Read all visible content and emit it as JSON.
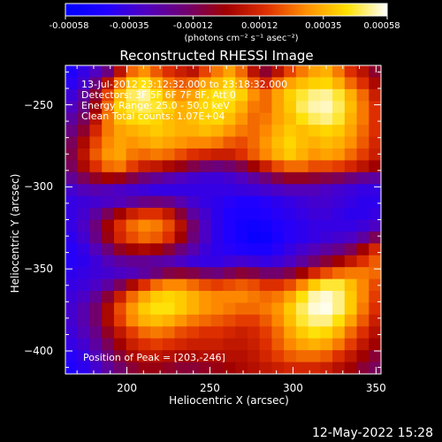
{
  "chart_data": {
    "type": "heatmap",
    "title": "Reconstructed RHESSI Image",
    "xlabel": "Heliocentric X (arcsec)",
    "ylabel": "Heliocentric Y (arcsec)",
    "xlim": [
      163,
      353
    ],
    "ylim": [
      -414,
      -226
    ],
    "x_ticks": [
      200,
      250,
      300,
      350
    ],
    "y_ticks": [
      -250,
      -300,
      -350,
      -400
    ],
    "colorbar": {
      "min": -0.00058,
      "max": 0.00058,
      "tick_values": [
        -0.00058,
        -0.00035,
        -0.00012,
        0.00012,
        0.00035,
        0.00058
      ],
      "tick_labels": [
        "-0.00058",
        "-0.00035",
        "-0.00012",
        "0.00012",
        "0.00035",
        "0.00058"
      ],
      "unit_label": "(photons cm⁻² s⁻¹ asec⁻²)",
      "colors": [
        "#0000ff",
        "#2000ff",
        "#5000c0",
        "#700070",
        "#a00000",
        "#e03000",
        "#ff9000",
        "#ffe000",
        "#ffffff"
      ]
    },
    "grid": false,
    "legend": "none",
    "annotations": {
      "time_range": "13-Jul-2012 23:12:32.000 to 23:18:32.000",
      "detectors": "Detectors: 3F 5F 6F 7F 8F, Att 0",
      "energy_range": "Energy Range: 25.0 - 50.0 keV",
      "algorithm": "Clean   Total counts: 1.07E+04",
      "peak": "Position of Peak = [203,-246]"
    },
    "peak_position": [
      203,
      -246
    ],
    "image_grid": {
      "cols": 26,
      "rows": 26,
      "values": [
        [
          0.12,
          0.18,
          0.25,
          0.35,
          0.55,
          0.7,
          0.75,
          0.68,
          0.62,
          0.58,
          0.55,
          0.65,
          0.72,
          0.78,
          0.7,
          0.55,
          0.45,
          0.55,
          0.65,
          0.72,
          0.78,
          0.8,
          0.72,
          0.62,
          0.55,
          0.45
        ],
        [
          0.15,
          0.22,
          0.35,
          0.55,
          0.72,
          0.85,
          0.88,
          0.8,
          0.72,
          0.68,
          0.7,
          0.78,
          0.82,
          0.86,
          0.78,
          0.68,
          0.6,
          0.7,
          0.78,
          0.82,
          0.85,
          0.86,
          0.8,
          0.7,
          0.62,
          0.52
        ],
        [
          0.2,
          0.3,
          0.45,
          0.65,
          0.82,
          0.92,
          0.95,
          0.88,
          0.8,
          0.75,
          0.78,
          0.85,
          0.88,
          0.9,
          0.85,
          0.75,
          0.7,
          0.78,
          0.85,
          0.9,
          0.94,
          0.95,
          0.9,
          0.8,
          0.7,
          0.58
        ],
        [
          0.25,
          0.35,
          0.5,
          0.7,
          0.85,
          0.9,
          0.92,
          0.9,
          0.85,
          0.8,
          0.82,
          0.86,
          0.88,
          0.86,
          0.8,
          0.72,
          0.7,
          0.78,
          0.84,
          0.92,
          0.96,
          0.97,
          0.92,
          0.82,
          0.72,
          0.62
        ],
        [
          0.3,
          0.4,
          0.55,
          0.72,
          0.82,
          0.86,
          0.88,
          0.86,
          0.82,
          0.8,
          0.82,
          0.85,
          0.86,
          0.82,
          0.76,
          0.7,
          0.72,
          0.78,
          0.82,
          0.88,
          0.92,
          0.94,
          0.9,
          0.8,
          0.72,
          0.62
        ],
        [
          0.35,
          0.45,
          0.6,
          0.72,
          0.78,
          0.8,
          0.82,
          0.84,
          0.82,
          0.8,
          0.8,
          0.82,
          0.8,
          0.76,
          0.72,
          0.7,
          0.74,
          0.8,
          0.84,
          0.82,
          0.84,
          0.86,
          0.84,
          0.78,
          0.7,
          0.62
        ],
        [
          0.4,
          0.52,
          0.65,
          0.74,
          0.78,
          0.76,
          0.78,
          0.8,
          0.78,
          0.76,
          0.74,
          0.74,
          0.72,
          0.68,
          0.66,
          0.7,
          0.76,
          0.82,
          0.86,
          0.82,
          0.8,
          0.82,
          0.8,
          0.75,
          0.68,
          0.6
        ],
        [
          0.42,
          0.55,
          0.68,
          0.76,
          0.78,
          0.72,
          0.7,
          0.72,
          0.7,
          0.66,
          0.62,
          0.6,
          0.58,
          0.58,
          0.62,
          0.68,
          0.74,
          0.8,
          0.84,
          0.8,
          0.76,
          0.78,
          0.76,
          0.7,
          0.64,
          0.58
        ],
        [
          0.4,
          0.52,
          0.62,
          0.7,
          0.72,
          0.64,
          0.58,
          0.56,
          0.52,
          0.48,
          0.42,
          0.38,
          0.36,
          0.38,
          0.42,
          0.5,
          0.58,
          0.66,
          0.7,
          0.7,
          0.66,
          0.66,
          0.64,
          0.6,
          0.55,
          0.5
        ],
        [
          0.32,
          0.4,
          0.46,
          0.5,
          0.48,
          0.42,
          0.36,
          0.32,
          0.28,
          0.25,
          0.22,
          0.2,
          0.2,
          0.22,
          0.25,
          0.3,
          0.36,
          0.42,
          0.46,
          0.46,
          0.44,
          0.42,
          0.4,
          0.36,
          0.32,
          0.3
        ],
        [
          0.22,
          0.26,
          0.28,
          0.26,
          0.24,
          0.22,
          0.2,
          0.18,
          0.18,
          0.18,
          0.18,
          0.18,
          0.18,
          0.18,
          0.19,
          0.2,
          0.22,
          0.24,
          0.26,
          0.26,
          0.26,
          0.24,
          0.22,
          0.2,
          0.18,
          0.18
        ],
        [
          0.18,
          0.2,
          0.22,
          0.24,
          0.26,
          0.3,
          0.34,
          0.36,
          0.34,
          0.28,
          0.22,
          0.18,
          0.16,
          0.14,
          0.12,
          0.12,
          0.14,
          0.16,
          0.18,
          0.2,
          0.22,
          0.22,
          0.2,
          0.18,
          0.16,
          0.16
        ],
        [
          0.18,
          0.22,
          0.3,
          0.4,
          0.5,
          0.58,
          0.62,
          0.62,
          0.56,
          0.44,
          0.3,
          0.22,
          0.16,
          0.12,
          0.1,
          0.1,
          0.12,
          0.14,
          0.16,
          0.18,
          0.2,
          0.2,
          0.18,
          0.16,
          0.16,
          0.18
        ],
        [
          0.18,
          0.24,
          0.36,
          0.5,
          0.62,
          0.7,
          0.74,
          0.72,
          0.66,
          0.54,
          0.38,
          0.24,
          0.16,
          0.12,
          0.08,
          0.06,
          0.08,
          0.12,
          0.14,
          0.16,
          0.18,
          0.18,
          0.18,
          0.18,
          0.2,
          0.24
        ],
        [
          0.16,
          0.22,
          0.34,
          0.48,
          0.6,
          0.66,
          0.7,
          0.68,
          0.62,
          0.5,
          0.36,
          0.24,
          0.16,
          0.12,
          0.08,
          0.04,
          0.05,
          0.1,
          0.14,
          0.16,
          0.18,
          0.2,
          0.22,
          0.24,
          0.3,
          0.4
        ],
        [
          0.14,
          0.18,
          0.26,
          0.36,
          0.46,
          0.5,
          0.52,
          0.5,
          0.44,
          0.36,
          0.28,
          0.2,
          0.16,
          0.14,
          0.12,
          0.1,
          0.1,
          0.14,
          0.18,
          0.22,
          0.26,
          0.3,
          0.34,
          0.4,
          0.5,
          0.6
        ],
        [
          0.14,
          0.16,
          0.2,
          0.26,
          0.3,
          0.32,
          0.32,
          0.3,
          0.28,
          0.24,
          0.2,
          0.18,
          0.18,
          0.2,
          0.22,
          0.2,
          0.18,
          0.2,
          0.24,
          0.3,
          0.38,
          0.44,
          0.5,
          0.56,
          0.62,
          0.68
        ],
        [
          0.16,
          0.18,
          0.2,
          0.22,
          0.24,
          0.26,
          0.3,
          0.36,
          0.42,
          0.44,
          0.42,
          0.38,
          0.36,
          0.4,
          0.44,
          0.42,
          0.38,
          0.38,
          0.42,
          0.5,
          0.6,
          0.66,
          0.7,
          0.72,
          0.72,
          0.7
        ],
        [
          0.18,
          0.2,
          0.24,
          0.3,
          0.4,
          0.52,
          0.62,
          0.7,
          0.74,
          0.74,
          0.7,
          0.66,
          0.64,
          0.66,
          0.68,
          0.66,
          0.62,
          0.62,
          0.66,
          0.74,
          0.84,
          0.9,
          0.9,
          0.82,
          0.74,
          0.66
        ],
        [
          0.2,
          0.24,
          0.32,
          0.44,
          0.58,
          0.7,
          0.78,
          0.84,
          0.86,
          0.84,
          0.8,
          0.76,
          0.74,
          0.74,
          0.74,
          0.72,
          0.7,
          0.72,
          0.78,
          0.88,
          0.96,
          0.98,
          0.94,
          0.84,
          0.74,
          0.64
        ],
        [
          0.22,
          0.28,
          0.38,
          0.52,
          0.66,
          0.76,
          0.84,
          0.88,
          0.88,
          0.84,
          0.8,
          0.76,
          0.74,
          0.72,
          0.7,
          0.7,
          0.72,
          0.76,
          0.84,
          0.92,
          0.98,
          0.99,
          0.94,
          0.84,
          0.72,
          0.62
        ],
        [
          0.22,
          0.28,
          0.38,
          0.52,
          0.64,
          0.74,
          0.8,
          0.82,
          0.8,
          0.76,
          0.72,
          0.7,
          0.68,
          0.66,
          0.64,
          0.64,
          0.68,
          0.74,
          0.82,
          0.9,
          0.94,
          0.94,
          0.88,
          0.78,
          0.68,
          0.58
        ],
        [
          0.2,
          0.26,
          0.34,
          0.46,
          0.56,
          0.64,
          0.7,
          0.72,
          0.7,
          0.66,
          0.64,
          0.62,
          0.62,
          0.6,
          0.58,
          0.6,
          0.64,
          0.7,
          0.78,
          0.84,
          0.88,
          0.86,
          0.8,
          0.7,
          0.62,
          0.54
        ],
        [
          0.18,
          0.22,
          0.3,
          0.4,
          0.5,
          0.58,
          0.62,
          0.64,
          0.62,
          0.6,
          0.58,
          0.58,
          0.58,
          0.56,
          0.56,
          0.58,
          0.62,
          0.68,
          0.74,
          0.78,
          0.8,
          0.78,
          0.72,
          0.64,
          0.56,
          0.5
        ],
        [
          0.14,
          0.18,
          0.26,
          0.36,
          0.44,
          0.52,
          0.56,
          0.56,
          0.54,
          0.52,
          0.52,
          0.54,
          0.54,
          0.54,
          0.54,
          0.56,
          0.6,
          0.64,
          0.68,
          0.7,
          0.7,
          0.68,
          0.62,
          0.56,
          0.5,
          0.44
        ],
        [
          0.12,
          0.16,
          0.22,
          0.3,
          0.38,
          0.44,
          0.48,
          0.48,
          0.46,
          0.44,
          0.44,
          0.46,
          0.48,
          0.5,
          0.52,
          0.54,
          0.56,
          0.58,
          0.6,
          0.6,
          0.6,
          0.58,
          0.54,
          0.5,
          0.44,
          0.4
        ]
      ]
    }
  },
  "footer": {
    "datetime": "12-May-2022 15:28"
  }
}
